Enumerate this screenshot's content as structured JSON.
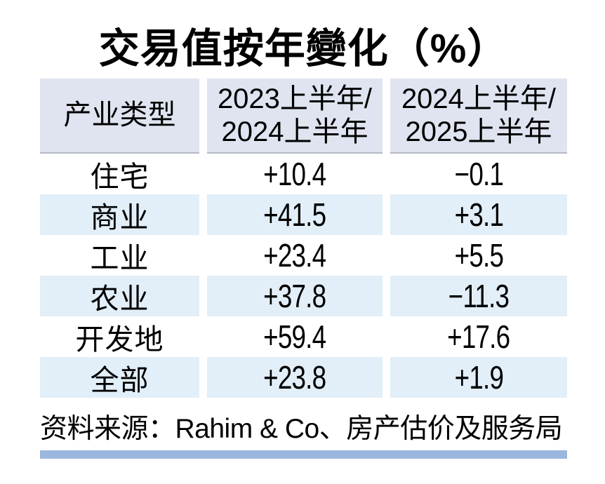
{
  "title": "交易值按年變化（%）",
  "header": {
    "col1": "产业类型",
    "col2_line1": "2023上半年/",
    "col2_line2": "2024上半年",
    "col3_line1": "2024上半年/",
    "col3_line2": "2025上半年"
  },
  "chart_data": {
    "type": "table",
    "title": "交易值按年變化（%）",
    "columns": [
      "产业类型",
      "2023上半年/2024上半年",
      "2024上半年/2025上半年"
    ],
    "rows": [
      [
        "住宅",
        "+10.4",
        "−0.1"
      ],
      [
        "商业",
        "+41.5",
        "+3.1"
      ],
      [
        "工业",
        "+23.4",
        "+5.5"
      ],
      [
        "农业",
        "+37.8",
        "−11.3"
      ],
      [
        "开发地",
        "+59.4",
        "+17.6"
      ],
      [
        "全部",
        "+23.8",
        "+1.9"
      ]
    ],
    "source": "资料来源：Rahim & Co、房产估价及服务局"
  },
  "colors": {
    "header_bg": "#dfe4f0",
    "row_alt_bg": "#e2eff8",
    "accent_bar": "#9bb7de",
    "header_border": "#b3b8c4",
    "text": "#000000"
  }
}
